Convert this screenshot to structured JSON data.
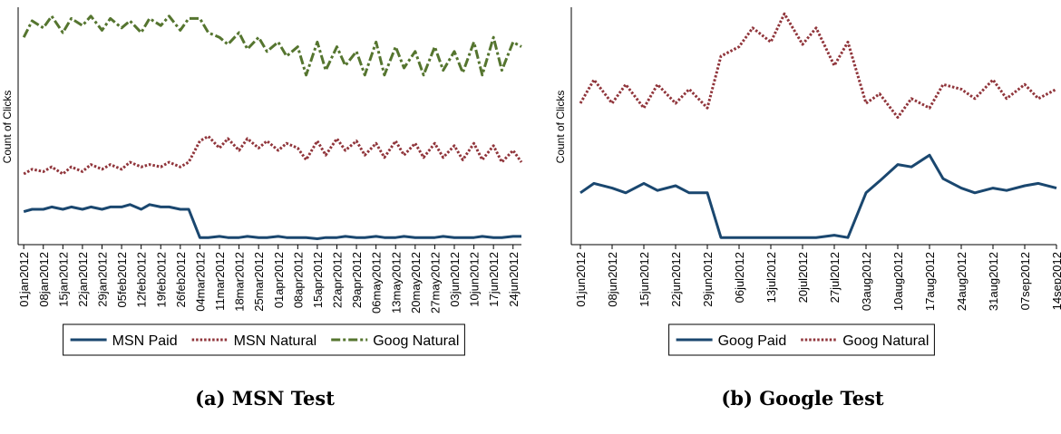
{
  "chart_data": [
    {
      "type": "line",
      "title": "(a) MSN Test",
      "ylabel": "Count of Clicks",
      "legend": "bottom",
      "xlim": [
        "30dec2011",
        "27jun2012"
      ],
      "ylim": [
        0,
        100
      ],
      "xticks": [
        "01jan2012",
        "08jan2012",
        "15jan2012",
        "22jan2012",
        "29jan2012",
        "05feb2012",
        "12feb2012",
        "19feb2012",
        "26feb2012",
        "04mar2012",
        "11mar2012",
        "18mar2012",
        "25mar2012",
        "01apr2012",
        "08apr2012",
        "15apr2012",
        "22apr2012",
        "29apr2012",
        "06may2012",
        "13may2012",
        "20may2012",
        "27may2012",
        "03jun2012",
        "10jun2012",
        "17jun2012",
        "24jun2012"
      ],
      "x": [
        "01jan2012",
        "04jan2012",
        "08jan2012",
        "11jan2012",
        "15jan2012",
        "18jan2012",
        "22jan2012",
        "25jan2012",
        "29jan2012",
        "01feb2012",
        "05feb2012",
        "08feb2012",
        "12feb2012",
        "15feb2012",
        "19feb2012",
        "22feb2012",
        "26feb2012",
        "29feb2012",
        "04mar2012",
        "07mar2012",
        "11mar2012",
        "14mar2012",
        "18mar2012",
        "21mar2012",
        "25mar2012",
        "28mar2012",
        "01apr2012",
        "04apr2012",
        "08apr2012",
        "11apr2012",
        "15apr2012",
        "18apr2012",
        "22apr2012",
        "25apr2012",
        "29apr2012",
        "02may2012",
        "06may2012",
        "09may2012",
        "13may2012",
        "16may2012",
        "20may2012",
        "23may2012",
        "27may2012",
        "30may2012",
        "03jun2012",
        "06jun2012",
        "10jun2012",
        "13jun2012",
        "17jun2012",
        "20jun2012",
        "24jun2012",
        "27jun2012"
      ],
      "series": [
        {
          "name": "MSN Paid",
          "color": "#1a476f",
          "style": "solid",
          "values": [
            14,
            15,
            15,
            16,
            15,
            16,
            15,
            16,
            15,
            16,
            16,
            17,
            15,
            17,
            16,
            16,
            15,
            15,
            3,
            3,
            3.5,
            3,
            3,
            3.5,
            3,
            3,
            3.5,
            3,
            3,
            3,
            2.5,
            3,
            3,
            3.5,
            3,
            3,
            3.5,
            3,
            3,
            3.5,
            3,
            3,
            3,
            3.5,
            3,
            3,
            3,
            3.5,
            3,
            3,
            3.5,
            3.5
          ]
        },
        {
          "name": "MSN Natural",
          "color": "#90353b",
          "style": "dot",
          "values": [
            30,
            32,
            31,
            33,
            30,
            33,
            31,
            34,
            32,
            34,
            32,
            35,
            33,
            34,
            33,
            35,
            33,
            35,
            44,
            46,
            41,
            45,
            40,
            45,
            41,
            44,
            40,
            43,
            41,
            36,
            44,
            38,
            45,
            40,
            44,
            38,
            43,
            37,
            44,
            38,
            43,
            37,
            43,
            37,
            42,
            36,
            43,
            36,
            42,
            35,
            40,
            35
          ]
        },
        {
          "name": "Goog Natural",
          "color": "#55752f",
          "style": "dashdot",
          "values": [
            88,
            95,
            92,
            97,
            90,
            96,
            93,
            97,
            91,
            96,
            92,
            95,
            90,
            96,
            93,
            97,
            91,
            96,
            96,
            90,
            88,
            85,
            90,
            83,
            88,
            82,
            86,
            80,
            84,
            72,
            86,
            74,
            84,
            76,
            82,
            72,
            86,
            72,
            84,
            75,
            82,
            72,
            84,
            74,
            82,
            73,
            86,
            72,
            88,
            74,
            86,
            84
          ]
        }
      ]
    },
    {
      "type": "line",
      "title": "(b) Google Test",
      "ylabel": "Count of Clicks",
      "legend": "bottom",
      "xlim": [
        "30may2012",
        "14sep2012"
      ],
      "ylim": [
        0,
        100
      ],
      "xticks": [
        "01jun2012",
        "08jun2012",
        "15jun2012",
        "22jun2012",
        "29jun2012",
        "06jul2012",
        "13jul2012",
        "20jul2012",
        "27jul2012",
        "03aug2012",
        "10aug2012",
        "17aug2012",
        "24aug2012",
        "31aug2012",
        "07sep2012",
        "14sep2012"
      ],
      "x": [
        "01jun2012",
        "04jun2012",
        "08jun2012",
        "11jun2012",
        "15jun2012",
        "18jun2012",
        "22jun2012",
        "25jun2012",
        "29jun2012",
        "02jul2012",
        "06jul2012",
        "09jul2012",
        "13jul2012",
        "16jul2012",
        "20jul2012",
        "23jul2012",
        "27jul2012",
        "30jul2012",
        "03aug2012",
        "06aug2012",
        "10aug2012",
        "13aug2012",
        "17aug2012",
        "20aug2012",
        "24aug2012",
        "27aug2012",
        "31aug2012",
        "03sep2012",
        "07sep2012",
        "10sep2012",
        "14sep2012"
      ],
      "series": [
        {
          "name": "Goog Paid",
          "color": "#1a476f",
          "style": "solid",
          "values": [
            22,
            26,
            24,
            22,
            26,
            23,
            25,
            22,
            22,
            3,
            3,
            3,
            3,
            3,
            3,
            3,
            4,
            3,
            22,
            27,
            34,
            33,
            38,
            28,
            24,
            22,
            24,
            23,
            25,
            26,
            24
          ]
        },
        {
          "name": "Goog Natural",
          "color": "#90353b",
          "style": "dot",
          "values": [
            60,
            70,
            60,
            68,
            58,
            68,
            60,
            66,
            58,
            80,
            84,
            92,
            86,
            98,
            85,
            92,
            76,
            86,
            60,
            64,
            54,
            62,
            58,
            68,
            66,
            62,
            70,
            62,
            68,
            62,
            66
          ]
        }
      ]
    }
  ]
}
